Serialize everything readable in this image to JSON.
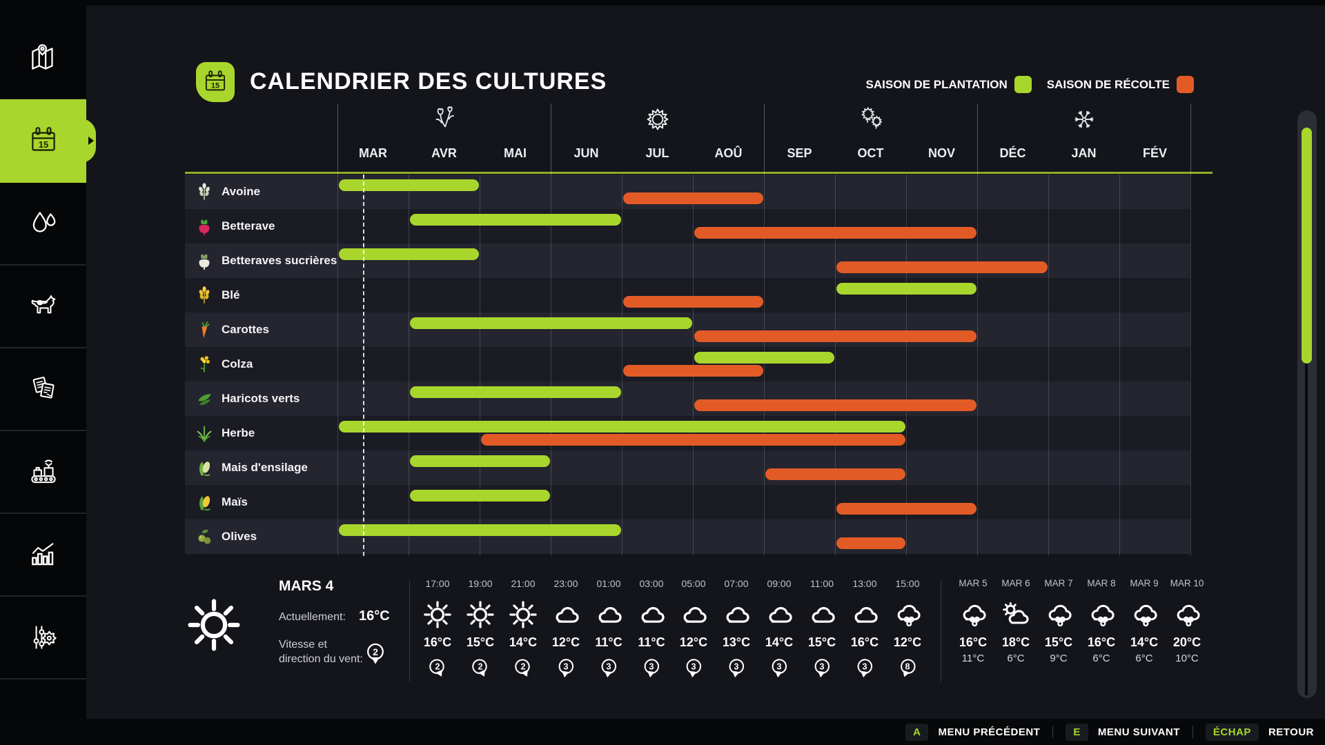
{
  "colors": {
    "accent_green": "#a9d62c",
    "accent_orange": "#e25b27",
    "row_light": "#24252f",
    "row_dark": "#1a1b23",
    "bg_main": "#14151b",
    "bg_sidebar": "#050608",
    "bg_bottom_bar": "#07080a"
  },
  "header": {
    "title": "CALENDRIER DES CULTURES",
    "legend": [
      {
        "label": "SAISON DE PLANTATION",
        "color": "#a9d62c"
      },
      {
        "label": "SAISON DE RÉCOLTE",
        "color": "#e25b27"
      }
    ]
  },
  "sidebar": {
    "items": [
      {
        "icon": "map-icon",
        "active": false
      },
      {
        "icon": "calendar-icon",
        "active": true
      },
      {
        "icon": "water-drops-icon",
        "active": false
      },
      {
        "icon": "cow-icon",
        "active": false
      },
      {
        "icon": "documents-icon",
        "active": false
      },
      {
        "icon": "production-icon",
        "active": false
      },
      {
        "icon": "statistics-icon",
        "active": false
      },
      {
        "icon": "settings-icon",
        "active": false
      }
    ]
  },
  "calendar": {
    "months": [
      "MAR",
      "AVR",
      "MAI",
      "JUN",
      "JUL",
      "AOÛ",
      "SEP",
      "OCT",
      "NOV",
      "DÉC",
      "JAN",
      "FÉV"
    ],
    "seasons": [
      {
        "name": "printemps",
        "icon": "spring-flowers-icon",
        "month_index": 1
      },
      {
        "name": "été",
        "icon": "summer-sun-icon",
        "month_index": 4
      },
      {
        "name": "automne",
        "icon": "autumn-leaves-icon",
        "month_index": 7
      },
      {
        "name": "hiver",
        "icon": "winter-snowflake-icon",
        "month_index": 10
      }
    ],
    "today_line": {
      "month_index": 0,
      "fraction": 0.36
    },
    "crops": [
      {
        "name": "Avoine",
        "icon": "oat-icon",
        "plant": [
          0,
          2
        ],
        "harvest": [
          4,
          6
        ]
      },
      {
        "name": "Betterave",
        "icon": "beetroot-icon",
        "plant": [
          1,
          4
        ],
        "harvest": [
          5,
          9
        ]
      },
      {
        "name": "Betteraves sucrières",
        "icon": "sugarbeet-icon",
        "plant": [
          0,
          2
        ],
        "harvest": [
          7,
          10
        ]
      },
      {
        "name": "Blé",
        "icon": "wheat-icon",
        "plant": [
          7,
          9
        ],
        "harvest": [
          4,
          6
        ]
      },
      {
        "name": "Carottes",
        "icon": "carrot-icon",
        "plant": [
          1,
          5
        ],
        "harvest": [
          5,
          9
        ]
      },
      {
        "name": "Colza",
        "icon": "canola-icon",
        "plant": [
          5,
          7
        ],
        "harvest": [
          4,
          6
        ]
      },
      {
        "name": "Haricots verts",
        "icon": "greenbean-icon",
        "plant": [
          1,
          4
        ],
        "harvest": [
          5,
          9
        ]
      },
      {
        "name": "Herbe",
        "icon": "grass-icon",
        "plant": [
          0,
          8
        ],
        "harvest": [
          2,
          8
        ]
      },
      {
        "name": "Mais d'ensilage",
        "icon": "silagecorn-icon",
        "plant": [
          1,
          3
        ],
        "harvest": [
          6,
          8
        ]
      },
      {
        "name": "Maïs",
        "icon": "corn-icon",
        "plant": [
          1,
          3
        ],
        "harvest": [
          7,
          9
        ]
      },
      {
        "name": "Olives",
        "icon": "olives-icon",
        "plant": [
          0,
          4
        ],
        "harvest": [
          7,
          8
        ]
      }
    ]
  },
  "weather": {
    "current": {
      "date": "MARS 4",
      "condition_icon": "sun-icon",
      "currently_label": "Actuellement:",
      "temp": "16°C",
      "wind_label": "Vitesse et direction du vent:",
      "wind_value": "2"
    },
    "hourly": [
      {
        "time": "17:00",
        "icon": "sun-icon",
        "temp": "16°C",
        "wind": "2",
        "wind_dir": -25
      },
      {
        "time": "19:00",
        "icon": "sun-icon",
        "temp": "15°C",
        "wind": "2",
        "wind_dir": -25
      },
      {
        "time": "21:00",
        "icon": "sun-icon",
        "temp": "14°C",
        "wind": "2",
        "wind_dir": -25
      },
      {
        "time": "23:00",
        "icon": "cloud-icon",
        "temp": "12°C",
        "wind": "3",
        "wind_dir": 8
      },
      {
        "time": "01:00",
        "icon": "cloud-icon",
        "temp": "11°C",
        "wind": "3",
        "wind_dir": 8
      },
      {
        "time": "03:00",
        "icon": "cloud-icon",
        "temp": "11°C",
        "wind": "3",
        "wind_dir": 8
      },
      {
        "time": "05:00",
        "icon": "cloud-icon",
        "temp": "12°C",
        "wind": "3",
        "wind_dir": 8
      },
      {
        "time": "07:00",
        "icon": "cloud-icon",
        "temp": "13°C",
        "wind": "3",
        "wind_dir": 8
      },
      {
        "time": "09:00",
        "icon": "cloud-icon",
        "temp": "14°C",
        "wind": "3",
        "wind_dir": 8
      },
      {
        "time": "11:00",
        "icon": "cloud-icon",
        "temp": "15°C",
        "wind": "3",
        "wind_dir": 8
      },
      {
        "time": "13:00",
        "icon": "cloud-icon",
        "temp": "16°C",
        "wind": "3",
        "wind_dir": 8
      },
      {
        "time": "15:00",
        "icon": "rain-icon",
        "temp": "12°C",
        "wind": "8",
        "wind_dir": 20
      }
    ],
    "daily": [
      {
        "day": "MAR 5",
        "icon": "rain-icon",
        "high": "16°C",
        "low": "11°C"
      },
      {
        "day": "MAR 6",
        "icon": "partly-sunny-icon",
        "high": "18°C",
        "low": "6°C"
      },
      {
        "day": "MAR 7",
        "icon": "rain-icon",
        "high": "15°C",
        "low": "9°C"
      },
      {
        "day": "MAR 8",
        "icon": "rain-icon",
        "high": "16°C",
        "low": "6°C"
      },
      {
        "day": "MAR 9",
        "icon": "rain-icon",
        "high": "14°C",
        "low": "6°C"
      },
      {
        "day": "MAR 10",
        "icon": "rain-icon",
        "high": "20°C",
        "low": "10°C"
      }
    ]
  },
  "footer": {
    "hints": [
      {
        "key": "A",
        "label": "MENU PRÉCÉDENT"
      },
      {
        "key": "E",
        "label": "MENU SUIVANT"
      },
      {
        "key": "ÉCHAP",
        "label": "RETOUR"
      }
    ]
  }
}
